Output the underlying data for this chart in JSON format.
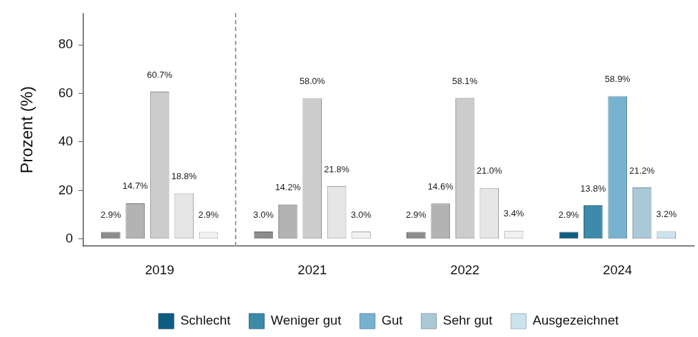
{
  "chart_data": {
    "type": "bar",
    "categories": [
      "2019",
      "2021",
      "2022",
      "2024"
    ],
    "ylabel": "Prozent (%)",
    "ylim": [
      -3,
      93
    ],
    "yticks": [
      0,
      20,
      40,
      60,
      80
    ],
    "legend": "bottom",
    "series": [
      {
        "name": "Schlecht",
        "color": "#0f5c82",
        "colors": [
          "#8c8c8c",
          "#8c8c8c",
          "#8c8c8c",
          "#0f5c82"
        ],
        "values": [
          2.9,
          3.0,
          2.9,
          2.9
        ],
        "value_labels": [
          "2.9%",
          "3.0%",
          "2.9%",
          "2.9%"
        ]
      },
      {
        "name": "Weniger gut",
        "color": "#3d8aa9",
        "colors": [
          "#b3b3b3",
          "#b3b3b3",
          "#b3b3b3",
          "#3d8aa9"
        ],
        "values": [
          14.7,
          14.2,
          14.6,
          13.8
        ],
        "value_labels": [
          "14.7%",
          "14.2%",
          "14.6%",
          "13.8%"
        ]
      },
      {
        "name": "Gut",
        "color": "#77b2cf",
        "colors": [
          "#cccccc",
          "#cccccc",
          "#cccccc",
          "#77b2cf"
        ],
        "values": [
          60.7,
          58.0,
          58.1,
          58.9
        ],
        "value_labels": [
          "60.7%",
          "58.0%",
          "58.1%",
          "58.9%"
        ]
      },
      {
        "name": "Sehr gut",
        "color": "#abc8d6",
        "colors": [
          "#e6e6e6",
          "#e6e6e6",
          "#e6e6e6",
          "#abc8d6"
        ],
        "values": [
          18.8,
          21.8,
          21.0,
          21.2
        ],
        "value_labels": [
          "18.8%",
          "21.8%",
          "21.0%",
          "21.2%"
        ]
      },
      {
        "name": "Ausgezeichnet",
        "color": "#cbe2ef",
        "colors": [
          "#f2f2f2",
          "#f2f2f2",
          "#f2f2f2",
          "#cbe2ef"
        ],
        "values": [
          2.9,
          3.0,
          3.4,
          3.2
        ],
        "value_labels": [
          "2.9%",
          "3.0%",
          "3.4%",
          "3.2%"
        ]
      }
    ]
  }
}
